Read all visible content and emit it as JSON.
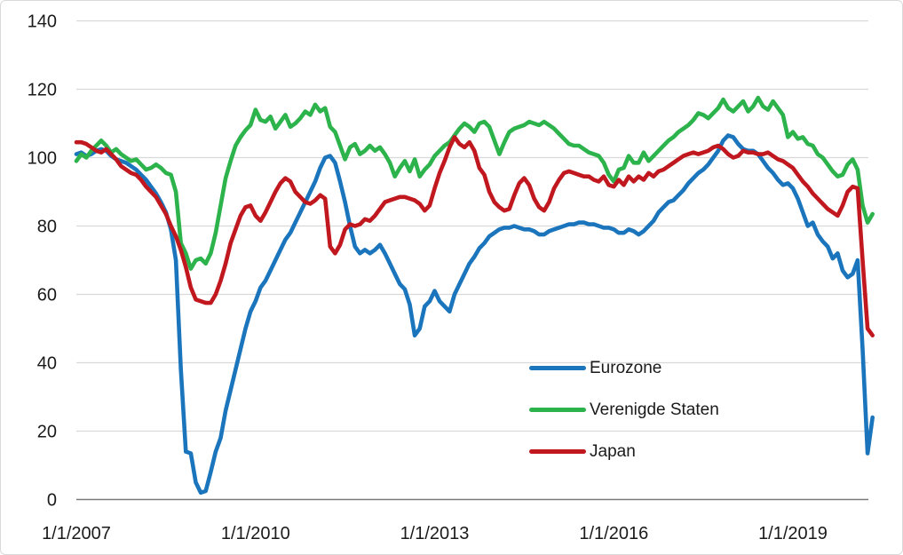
{
  "page": {
    "background_color": "#ffffff",
    "border_color": "#d9d9d9"
  },
  "chart_data": {
    "type": "line",
    "title": "",
    "grid": true,
    "legend_position": "inside-center-right",
    "style": {
      "grid_color": "#d9d9d9",
      "axis_color": "#7a7a7a",
      "text_color": "#1a1a1a"
    },
    "x_axis": {
      "label": "",
      "frequency": "monthly",
      "start": "1/1/2007",
      "end": "5/1/2020",
      "ticks": [
        {
          "label": "1/1/2007",
          "month_offset": 0
        },
        {
          "label": "1/1/2010",
          "month_offset": 36
        },
        {
          "label": "1/1/2013",
          "month_offset": 72
        },
        {
          "label": "1/1/2016",
          "month_offset": 108
        },
        {
          "label": "1/1/2019",
          "month_offset": 144
        }
      ]
    },
    "y_axis": {
      "label": "",
      "ticks": [
        0,
        20,
        40,
        60,
        80,
        100,
        120,
        140
      ],
      "range": [
        0,
        140
      ]
    },
    "series": [
      {
        "name": "Eurozone",
        "color": "#1b75bc",
        "values": [
          101,
          101.5,
          100.5,
          101,
          102,
          102.5,
          102,
          100.5,
          99.5,
          99,
          98.5,
          97.5,
          96.5,
          95,
          93.5,
          91.5,
          89.5,
          87,
          84,
          79,
          70,
          38,
          14,
          13.5,
          5,
          2,
          2.5,
          8,
          14,
          18,
          26,
          32,
          38,
          44,
          50,
          55,
          58,
          62,
          64,
          67,
          70,
          73,
          76,
          78,
          81,
          84,
          87,
          90,
          93,
          97,
          100,
          100.5,
          98.5,
          93,
          87,
          80,
          74,
          72,
          73,
          72,
          73,
          74.5,
          72,
          69,
          66,
          63,
          61.5,
          57,
          48,
          50,
          56.5,
          58,
          61,
          58,
          56.5,
          55,
          60,
          63,
          66,
          69,
          71,
          73.5,
          75,
          77,
          78,
          79,
          79.5,
          79.5,
          80,
          79.5,
          79,
          79,
          78.5,
          77.5,
          77.5,
          78.5,
          79,
          79.5,
          80,
          80.5,
          80.5,
          81,
          81,
          80.5,
          80.5,
          80,
          79.5,
          79.5,
          79,
          78,
          78,
          79,
          78.5,
          77.5,
          78.5,
          80,
          81.5,
          84,
          85.5,
          87,
          87.5,
          89,
          90.5,
          92.5,
          94,
          95.5,
          96.5,
          98,
          100,
          102,
          105,
          106.5,
          106,
          104,
          102.5,
          102,
          102,
          101,
          99,
          97,
          95.5,
          93.5,
          92,
          92.5,
          91,
          88,
          84,
          80,
          81,
          77.5,
          75.5,
          74,
          70.5,
          72,
          67,
          65,
          66,
          70,
          44,
          13.5,
          24
        ]
      },
      {
        "name": "Verenigde Staten",
        "color": "#2cb34b",
        "values": [
          99,
          101,
          100,
          102,
          103.5,
          105,
          103.5,
          101.5,
          102.5,
          101,
          100,
          99,
          99.5,
          98,
          96.5,
          97,
          98,
          97,
          95.5,
          95,
          90,
          75,
          72,
          67.5,
          70,
          70.5,
          69,
          72,
          78,
          86,
          94,
          99,
          103.5,
          106,
          108,
          109.5,
          114,
          111,
          110.5,
          112,
          108.5,
          110.5,
          112.5,
          109,
          110,
          111.5,
          113.5,
          112.5,
          115.5,
          113.5,
          114.5,
          109,
          107.5,
          103.5,
          99.5,
          103,
          104,
          101,
          102,
          103.5,
          102,
          103,
          101,
          98.5,
          94.5,
          97,
          99,
          96,
          99.5,
          94.5,
          96.5,
          98,
          100.5,
          102,
          103.5,
          104.5,
          106.5,
          108.5,
          110,
          109,
          107.5,
          110,
          110.5,
          109,
          105,
          101,
          104.5,
          107.5,
          108.5,
          109,
          109.5,
          110.5,
          110,
          109.5,
          110.5,
          109.5,
          108.5,
          107,
          105.5,
          104,
          103.5,
          103.5,
          102.5,
          101.5,
          101,
          100.5,
          98.5,
          95,
          93,
          96.5,
          97,
          100.5,
          98.5,
          98.5,
          101.5,
          99,
          100.5,
          102,
          103.5,
          105,
          106,
          107.5,
          108.5,
          109.5,
          111,
          113,
          112.5,
          111.5,
          113,
          114.5,
          117,
          114.5,
          113.5,
          115,
          116.5,
          113.5,
          115,
          117.5,
          115,
          114,
          116.5,
          114.5,
          112.5,
          106,
          107.5,
          105.5,
          106,
          104,
          103.5,
          101,
          100,
          98,
          96,
          94.5,
          95,
          98,
          99.5,
          96.5,
          86,
          81,
          83.5
        ]
      },
      {
        "name": "Japan",
        "color": "#c0181e",
        "values": [
          104.5,
          104.5,
          104,
          103,
          102,
          101.5,
          102.5,
          101,
          99.5,
          97.5,
          96.5,
          95.5,
          95,
          93.5,
          91.5,
          90,
          88.5,
          86,
          83.5,
          80,
          77,
          73,
          68,
          62,
          58.5,
          58,
          57.5,
          57.5,
          60,
          64,
          69,
          75,
          79,
          83,
          85.5,
          86,
          83,
          81.5,
          84,
          87,
          90,
          92.5,
          94,
          93,
          90,
          88.5,
          87,
          86.5,
          87.5,
          89,
          88,
          74,
          72,
          74.5,
          79,
          80.5,
          80,
          80.5,
          82,
          81.5,
          83,
          85,
          87,
          87.5,
          88,
          88.5,
          88.5,
          88,
          87.5,
          86.5,
          84.5,
          86,
          91,
          95.5,
          99,
          103,
          106,
          104,
          103,
          104.5,
          102,
          97,
          95,
          90,
          87,
          85.5,
          84.5,
          85,
          89,
          92.5,
          94,
          92,
          88,
          85.5,
          84.5,
          87,
          91,
          93.5,
          95.5,
          96,
          95.5,
          95,
          94.5,
          94.5,
          93.5,
          93,
          94.5,
          92,
          91.5,
          93.5,
          92,
          94.5,
          93,
          94.5,
          93.5,
          95.5,
          94.5,
          96,
          96.5,
          97.5,
          98.5,
          99.5,
          100.5,
          101,
          101.5,
          101,
          101.5,
          102,
          103,
          103.5,
          102.5,
          101,
          100,
          100.5,
          102,
          101.5,
          101.5,
          101,
          101,
          101.5,
          100.5,
          99.5,
          99,
          98,
          97,
          95,
          93,
          91.5,
          89.5,
          88,
          86.5,
          85,
          84,
          83,
          86,
          90,
          91.5,
          91,
          70,
          50,
          48
        ]
      }
    ]
  },
  "legend": {
    "items": [
      {
        "label": "Eurozone"
      },
      {
        "label": "Verenigde Staten"
      },
      {
        "label": "Japan"
      }
    ]
  }
}
